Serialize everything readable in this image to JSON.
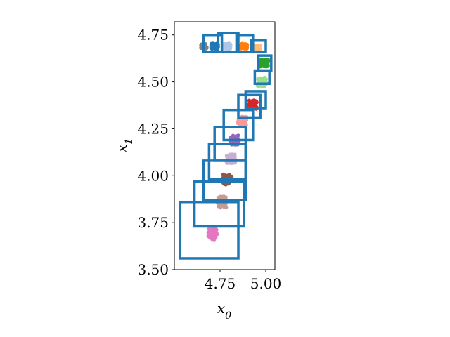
{
  "chart_data": {
    "type": "scatter",
    "xlabel": "x0",
    "ylabel": "x1",
    "xlim": [
      4.5,
      5.05
    ],
    "ylim": [
      3.5,
      4.82
    ],
    "xticks": [
      4.75,
      5.0
    ],
    "xtick_labels": [
      "4.75",
      "5.00"
    ],
    "yticks": [
      3.5,
      3.75,
      4.0,
      4.25,
      4.5,
      4.75
    ],
    "ytick_labels": [
      "3.50",
      "3.75",
      "4.00",
      "4.25",
      "4.50",
      "4.75"
    ],
    "grid": false,
    "clusters": [
      {
        "color": "#e377c2",
        "center": [
          4.71,
          3.69
        ],
        "spread": [
          0.05,
          0.06
        ],
        "n": 60
      },
      {
        "color": "#c49c94",
        "center": [
          4.76,
          3.86
        ],
        "spread": [
          0.05,
          0.06
        ],
        "n": 55
      },
      {
        "color": "#8c564b",
        "center": [
          4.79,
          3.98
        ],
        "spread": [
          0.05,
          0.055
        ],
        "n": 55
      },
      {
        "color": "#c5b0d5",
        "center": [
          4.81,
          4.09
        ],
        "spread": [
          0.05,
          0.05
        ],
        "n": 55
      },
      {
        "color": "#9467bd",
        "center": [
          4.83,
          4.19
        ],
        "spread": [
          0.05,
          0.05
        ],
        "n": 55
      },
      {
        "color": "#ff9896",
        "center": [
          4.87,
          4.29
        ],
        "spread": [
          0.05,
          0.05
        ],
        "n": 55
      },
      {
        "color": "#d62728",
        "center": [
          4.93,
          4.38
        ],
        "spread": [
          0.045,
          0.05
        ],
        "n": 55
      },
      {
        "color": "#98df8a",
        "center": [
          4.98,
          4.5
        ],
        "spread": [
          0.05,
          0.05
        ],
        "n": 55
      },
      {
        "color": "#2ca02c",
        "center": [
          4.99,
          4.6
        ],
        "spread": [
          0.05,
          0.04
        ],
        "n": 55
      },
      {
        "color": "#ffbb78",
        "center": [
          4.95,
          4.68
        ],
        "spread": [
          0.04,
          0.03
        ],
        "n": 40
      },
      {
        "color": "#ff7f0e",
        "center": [
          4.88,
          4.69
        ],
        "spread": [
          0.04,
          0.03
        ],
        "n": 40
      },
      {
        "color": "#aec7e8",
        "center": [
          4.79,
          4.69
        ],
        "spread": [
          0.04,
          0.03
        ],
        "n": 40
      },
      {
        "color": "#1f77b4",
        "center": [
          4.72,
          4.69
        ],
        "spread": [
          0.04,
          0.03
        ],
        "n": 40
      },
      {
        "color": "#7f7f7f",
        "center": [
          4.66,
          4.69
        ],
        "spread": [
          0.035,
          0.03
        ],
        "n": 35
      }
    ],
    "boxes": {
      "color": "#1f77b4",
      "rects": [
        {
          "x0": 4.53,
          "x1": 4.85,
          "y0": 3.56,
          "y1": 3.86
        },
        {
          "x0": 4.61,
          "x1": 4.88,
          "y0": 3.73,
          "y1": 3.97
        },
        {
          "x0": 4.66,
          "x1": 4.89,
          "y0": 3.87,
          "y1": 4.08
        },
        {
          "x0": 4.69,
          "x1": 4.89,
          "y0": 3.98,
          "y1": 4.17
        },
        {
          "x0": 4.72,
          "x1": 4.89,
          "y0": 4.08,
          "y1": 4.26
        },
        {
          "x0": 4.77,
          "x1": 4.93,
          "y0": 4.19,
          "y1": 4.35
        },
        {
          "x0": 4.85,
          "x1": 4.97,
          "y0": 4.31,
          "y1": 4.43
        },
        {
          "x0": 4.89,
          "x1": 5.0,
          "y0": 4.36,
          "y1": 4.45
        },
        {
          "x0": 4.94,
          "x1": 5.02,
          "y0": 4.49,
          "y1": 4.56
        },
        {
          "x0": 4.96,
          "x1": 5.03,
          "y0": 4.56,
          "y1": 4.64
        },
        {
          "x0": 4.92,
          "x1": 5.0,
          "y0": 4.66,
          "y1": 4.72
        },
        {
          "x0": 4.84,
          "x1": 4.93,
          "y0": 4.66,
          "y1": 4.75
        },
        {
          "x0": 4.74,
          "x1": 4.85,
          "y0": 4.66,
          "y1": 4.76
        },
        {
          "x0": 4.66,
          "x1": 4.76,
          "y0": 4.66,
          "y1": 4.75
        }
      ]
    }
  }
}
